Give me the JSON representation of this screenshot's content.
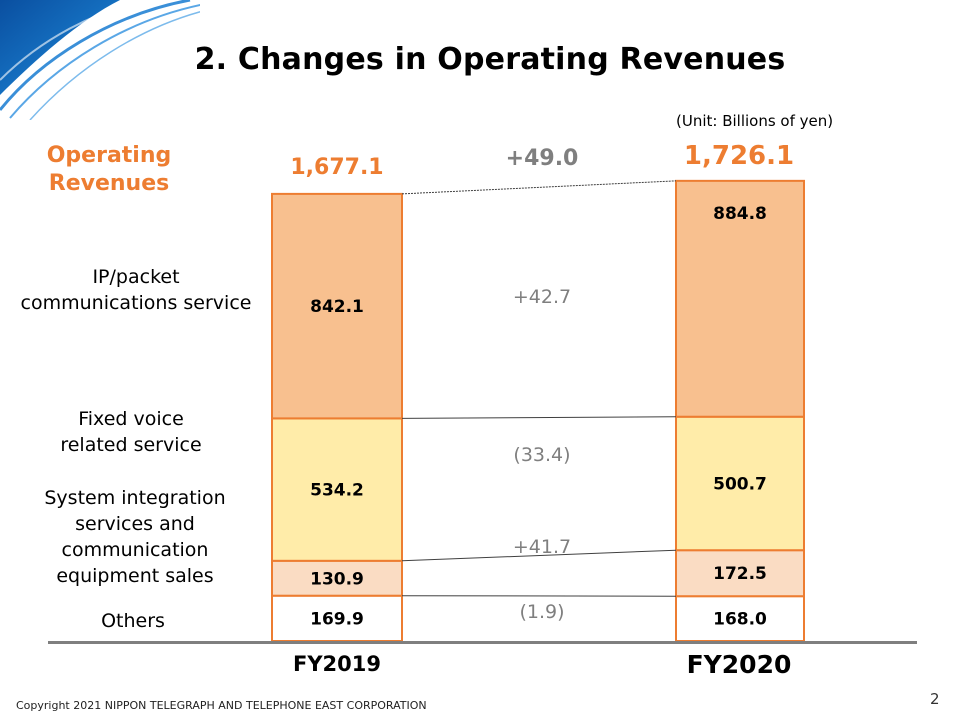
{
  "title": "2. Changes in Operating Revenues",
  "unit": "(Unit: Billions of yen)",
  "operating_revenues_label": "Operating\nRevenues",
  "colors": {
    "accent": "#ed7d31",
    "ip_packet": "#f8c08f",
    "fixed_voice": "#ffeca9",
    "system_integration": "#fadcc3",
    "others": "#ffffff",
    "bar_border": "#ed7d31",
    "connector": "#404040",
    "baseline": "#7f7f7f",
    "diff_text": "#7f7f7f"
  },
  "chart_data": {
    "type": "bar",
    "stacked": true,
    "categories": [
      "FY2019",
      "FY2020"
    ],
    "series": [
      {
        "name": "Others",
        "values": [
          169.9,
          168.0
        ]
      },
      {
        "name": "System integration services and communication equipment sales",
        "values": [
          130.9,
          172.5
        ]
      },
      {
        "name": "Fixed voice related service",
        "values": [
          534.2,
          500.7
        ]
      },
      {
        "name": "IP/packet communications service",
        "values": [
          842.1,
          884.8
        ]
      }
    ],
    "totals": [
      "1,677.1",
      "1,726.1"
    ],
    "value_labels": [
      [
        "169.9",
        "168.0"
      ],
      [
        "130.9",
        "172.5"
      ],
      [
        "534.2",
        "500.7"
      ],
      [
        "842.1",
        "884.8"
      ]
    ],
    "changes": {
      "total": "+49.0",
      "ip_packet": "+42.7",
      "fixed_voice": "(33.4)",
      "system_integration": "+41.7",
      "others": "(1.9)"
    },
    "category_labels": {
      "ip_packet": "IP/packet\ncommunications  service",
      "fixed_voice": "Fixed voice\nrelated service",
      "system_integration": "System integration\nservices and\ncommunication\nequipment sales",
      "others": "Others"
    },
    "ylim": [
      0,
      1800
    ]
  },
  "footer": {
    "copyright": "Copyright 2021 NIPPON TELEGRAPH AND TELEPHONE EAST CORPORATION",
    "page": "2"
  }
}
